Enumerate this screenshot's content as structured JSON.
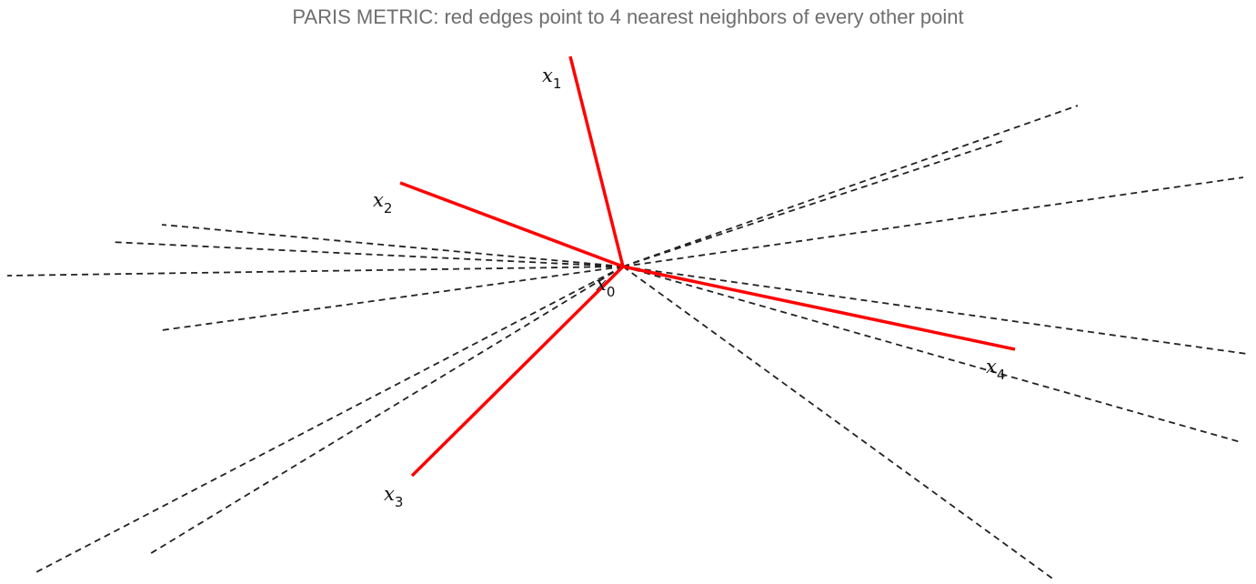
{
  "title": "PARIS METRIC: red edges point to 4 nearest neighbors of every other point",
  "colors": {
    "neighbor_edge": "#ff0000",
    "other_edge": "#222222",
    "title_text": "#6e6e6e",
    "background": "#ffffff"
  },
  "legend": "none",
  "axes_visible": false,
  "center_point": {
    "name": "x",
    "subscript": "0"
  },
  "neighbors": [
    {
      "name": "x",
      "subscript": "1"
    },
    {
      "name": "x",
      "subscript": "2"
    },
    {
      "name": "x",
      "subscript": "3"
    },
    {
      "name": "x",
      "subscript": "4"
    }
  ],
  "edge_styles": {
    "neighbor": "solid",
    "other": "dashed"
  }
}
